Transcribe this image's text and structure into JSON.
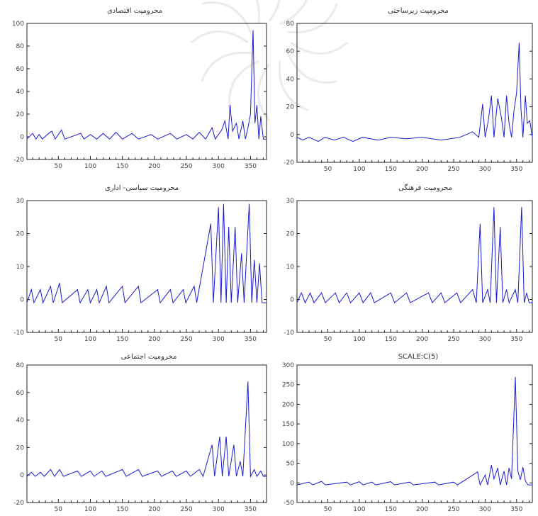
{
  "chart_data": [
    {
      "type": "line",
      "title": "محرومیت اقتصادی",
      "xlim": [
        1,
        375
      ],
      "ylim": [
        -20,
        100
      ],
      "xticks": [
        50,
        100,
        150,
        200,
        250,
        300,
        350
      ],
      "yticks": [
        -20,
        0,
        20,
        40,
        60,
        80,
        100
      ],
      "baseline": -2,
      "series": [
        {
          "color": "#1a1ad4",
          "points": [
            [
              1,
              -2
            ],
            [
              10,
              3
            ],
            [
              15,
              -2
            ],
            [
              20,
              2
            ],
            [
              25,
              -2
            ],
            [
              35,
              3
            ],
            [
              40,
              5
            ],
            [
              45,
              -2
            ],
            [
              55,
              6
            ],
            [
              60,
              -2
            ],
            [
              85,
              3
            ],
            [
              90,
              -2
            ],
            [
              100,
              2
            ],
            [
              110,
              -2
            ],
            [
              120,
              3
            ],
            [
              130,
              -2
            ],
            [
              140,
              4
            ],
            [
              150,
              -2
            ],
            [
              165,
              3
            ],
            [
              175,
              -2
            ],
            [
              195,
              2
            ],
            [
              205,
              -2
            ],
            [
              225,
              3
            ],
            [
              235,
              -2
            ],
            [
              250,
              2
            ],
            [
              260,
              -2
            ],
            [
              270,
              4
            ],
            [
              280,
              -2
            ],
            [
              290,
              8
            ],
            [
              295,
              -2
            ],
            [
              305,
              6
            ],
            [
              310,
              14
            ],
            [
              315,
              -2
            ],
            [
              318,
              28
            ],
            [
              322,
              5
            ],
            [
              328,
              12
            ],
            [
              332,
              -2
            ],
            [
              338,
              14
            ],
            [
              342,
              -2
            ],
            [
              346,
              8
            ],
            [
              350,
              20
            ],
            [
              354,
              94
            ],
            [
              357,
              12
            ],
            [
              360,
              28
            ],
            [
              363,
              -2
            ],
            [
              366,
              18
            ],
            [
              370,
              -2
            ],
            [
              375,
              -2
            ]
          ]
        }
      ]
    },
    {
      "type": "line",
      "title": "محرومیت زیرساختی",
      "xlim": [
        1,
        375
      ],
      "ylim": [
        -20,
        80
      ],
      "xticks": [
        50,
        100,
        150,
        200,
        250,
        300,
        350
      ],
      "yticks": [
        -20,
        0,
        20,
        40,
        60,
        80
      ],
      "baseline": -2,
      "series": [
        {
          "color": "#1a1ad4",
          "points": [
            [
              1,
              -2
            ],
            [
              10,
              -4
            ],
            [
              20,
              -2
            ],
            [
              35,
              -5
            ],
            [
              45,
              -2
            ],
            [
              60,
              -4
            ],
            [
              75,
              -2
            ],
            [
              90,
              -5
            ],
            [
              105,
              -2
            ],
            [
              130,
              -4
            ],
            [
              150,
              -2
            ],
            [
              175,
              -3
            ],
            [
              200,
              -2
            ],
            [
              230,
              -4
            ],
            [
              260,
              -2
            ],
            [
              280,
              2
            ],
            [
              290,
              -2
            ],
            [
              296,
              22
            ],
            [
              300,
              -2
            ],
            [
              305,
              10
            ],
            [
              310,
              28
            ],
            [
              314,
              -2
            ],
            [
              320,
              26
            ],
            [
              326,
              12
            ],
            [
              330,
              -2
            ],
            [
              334,
              28
            ],
            [
              338,
              8
            ],
            [
              342,
              -2
            ],
            [
              346,
              18
            ],
            [
              350,
              30
            ],
            [
              354,
              66
            ],
            [
              357,
              18
            ],
            [
              360,
              -2
            ],
            [
              364,
              28
            ],
            [
              367,
              8
            ],
            [
              371,
              10
            ],
            [
              375,
              -2
            ]
          ]
        }
      ]
    },
    {
      "type": "line",
      "title": "محرومیت سیاسی- اداری",
      "xlim": [
        1,
        375
      ],
      "ylim": [
        -10,
        30
      ],
      "xticks": [
        50,
        100,
        150,
        200,
        250,
        300,
        350
      ],
      "yticks": [
        -10,
        0,
        10,
        20,
        30
      ],
      "baseline": -1,
      "series": [
        {
          "color": "#1a1ad4",
          "points": [
            [
              1,
              -1
            ],
            [
              8,
              3
            ],
            [
              12,
              -1
            ],
            [
              22,
              3
            ],
            [
              26,
              -1
            ],
            [
              38,
              4
            ],
            [
              42,
              -1
            ],
            [
              52,
              5
            ],
            [
              56,
              -1
            ],
            [
              80,
              3
            ],
            [
              84,
              -1
            ],
            [
              96,
              3
            ],
            [
              100,
              -1
            ],
            [
              110,
              3
            ],
            [
              114,
              -1
            ],
            [
              125,
              4
            ],
            [
              129,
              -1
            ],
            [
              150,
              4
            ],
            [
              154,
              -1
            ],
            [
              175,
              4
            ],
            [
              179,
              -1
            ],
            [
              205,
              3
            ],
            [
              209,
              -1
            ],
            [
              225,
              3
            ],
            [
              229,
              -1
            ],
            [
              245,
              3
            ],
            [
              249,
              -1
            ],
            [
              262,
              4
            ],
            [
              266,
              -1
            ],
            [
              288,
              23
            ],
            [
              292,
              -1
            ],
            [
              300,
              28
            ],
            [
              304,
              -1
            ],
            [
              308,
              29
            ],
            [
              312,
              -1
            ],
            [
              316,
              22
            ],
            [
              320,
              -1
            ],
            [
              326,
              22
            ],
            [
              330,
              -1
            ],
            [
              336,
              14
            ],
            [
              340,
              -1
            ],
            [
              348,
              29
            ],
            [
              352,
              -1
            ],
            [
              356,
              12
            ],
            [
              360,
              -1
            ],
            [
              364,
              11
            ],
            [
              368,
              -1
            ],
            [
              375,
              -1
            ]
          ]
        }
      ]
    },
    {
      "type": "line",
      "title": "محرومیت فرهنگی",
      "xlim": [
        1,
        375
      ],
      "ylim": [
        -10,
        30
      ],
      "xticks": [
        50,
        100,
        150,
        200,
        250,
        300,
        350
      ],
      "yticks": [
        -10,
        0,
        10,
        20,
        30
      ],
      "baseline": -1,
      "series": [
        {
          "color": "#1a1ad4",
          "points": [
            [
              1,
              -1
            ],
            [
              8,
              2
            ],
            [
              14,
              -1
            ],
            [
              22,
              2
            ],
            [
              28,
              -1
            ],
            [
              40,
              2
            ],
            [
              46,
              -1
            ],
            [
              62,
              2
            ],
            [
              68,
              -1
            ],
            [
              80,
              2
            ],
            [
              86,
              -1
            ],
            [
              100,
              2
            ],
            [
              106,
              -1
            ],
            [
              118,
              2
            ],
            [
              124,
              -1
            ],
            [
              150,
              2
            ],
            [
              156,
              -1
            ],
            [
              175,
              2
            ],
            [
              181,
              -1
            ],
            [
              210,
              2
            ],
            [
              216,
              -1
            ],
            [
              230,
              2
            ],
            [
              236,
              -1
            ],
            [
              255,
              2
            ],
            [
              261,
              -1
            ],
            [
              280,
              3
            ],
            [
              286,
              -1
            ],
            [
              292,
              23
            ],
            [
              296,
              -1
            ],
            [
              304,
              3
            ],
            [
              308,
              -1
            ],
            [
              314,
              28
            ],
            [
              318,
              -1
            ],
            [
              324,
              22
            ],
            [
              328,
              -1
            ],
            [
              334,
              3
            ],
            [
              338,
              -1
            ],
            [
              348,
              3
            ],
            [
              352,
              -1
            ],
            [
              358,
              28
            ],
            [
              362,
              -1
            ],
            [
              366,
              2
            ],
            [
              370,
              -1
            ],
            [
              375,
              -1
            ]
          ]
        }
      ]
    },
    {
      "type": "line",
      "title": "محرومیت اجتماعی",
      "xlim": [
        1,
        375
      ],
      "ylim": [
        -20,
        80
      ],
      "xticks": [
        50,
        100,
        150,
        200,
        250,
        300,
        350
      ],
      "yticks": [
        -20,
        0,
        20,
        40,
        60,
        80
      ],
      "baseline": -1,
      "series": [
        {
          "color": "#1a1ad4",
          "points": [
            [
              1,
              -1
            ],
            [
              8,
              2
            ],
            [
              14,
              -1
            ],
            [
              22,
              2
            ],
            [
              28,
              -1
            ],
            [
              38,
              4
            ],
            [
              44,
              -1
            ],
            [
              52,
              4
            ],
            [
              58,
              -1
            ],
            [
              80,
              3
            ],
            [
              86,
              -1
            ],
            [
              100,
              3
            ],
            [
              106,
              -1
            ],
            [
              118,
              3
            ],
            [
              124,
              -1
            ],
            [
              150,
              4
            ],
            [
              156,
              -1
            ],
            [
              175,
              4
            ],
            [
              181,
              -1
            ],
            [
              205,
              3
            ],
            [
              211,
              -1
            ],
            [
              228,
              3
            ],
            [
              234,
              -1
            ],
            [
              250,
              3
            ],
            [
              256,
              -1
            ],
            [
              270,
              4
            ],
            [
              276,
              -1
            ],
            [
              290,
              22
            ],
            [
              294,
              -1
            ],
            [
              302,
              28
            ],
            [
              306,
              -1
            ],
            [
              312,
              28
            ],
            [
              316,
              -1
            ],
            [
              324,
              22
            ],
            [
              328,
              -1
            ],
            [
              334,
              10
            ],
            [
              338,
              -1
            ],
            [
              346,
              68
            ],
            [
              350,
              -1
            ],
            [
              356,
              4
            ],
            [
              360,
              -1
            ],
            [
              366,
              3
            ],
            [
              370,
              -1
            ],
            [
              375,
              -1
            ]
          ]
        }
      ]
    },
    {
      "type": "line",
      "title": "SCALE:C(5)",
      "xlim": [
        1,
        375
      ],
      "ylim": [
        -50,
        300
      ],
      "xticks": [
        50,
        100,
        150,
        200,
        250,
        300,
        350
      ],
      "yticks": [
        -50,
        0,
        50,
        100,
        150,
        200,
        250,
        300
      ],
      "baseline": -5,
      "series": [
        {
          "color": "#1a1ad4",
          "points": [
            [
              1,
              -5
            ],
            [
              20,
              2
            ],
            [
              26,
              -5
            ],
            [
              40,
              4
            ],
            [
              46,
              -5
            ],
            [
              80,
              2
            ],
            [
              86,
              -5
            ],
            [
              100,
              3
            ],
            [
              106,
              -5
            ],
            [
              120,
              2
            ],
            [
              126,
              -5
            ],
            [
              150,
              3
            ],
            [
              156,
              -5
            ],
            [
              180,
              2
            ],
            [
              186,
              -5
            ],
            [
              220,
              2
            ],
            [
              226,
              -5
            ],
            [
              250,
              2
            ],
            [
              256,
              -5
            ],
            [
              288,
              28
            ],
            [
              292,
              -5
            ],
            [
              300,
              20
            ],
            [
              304,
              -5
            ],
            [
              310,
              45
            ],
            [
              314,
              10
            ],
            [
              320,
              38
            ],
            [
              324,
              -5
            ],
            [
              330,
              30
            ],
            [
              334,
              -5
            ],
            [
              338,
              38
            ],
            [
              342,
              10
            ],
            [
              348,
              270
            ],
            [
              352,
              30
            ],
            [
              356,
              8
            ],
            [
              360,
              40
            ],
            [
              364,
              5
            ],
            [
              368,
              -5
            ],
            [
              375,
              -5
            ]
          ]
        }
      ]
    }
  ]
}
